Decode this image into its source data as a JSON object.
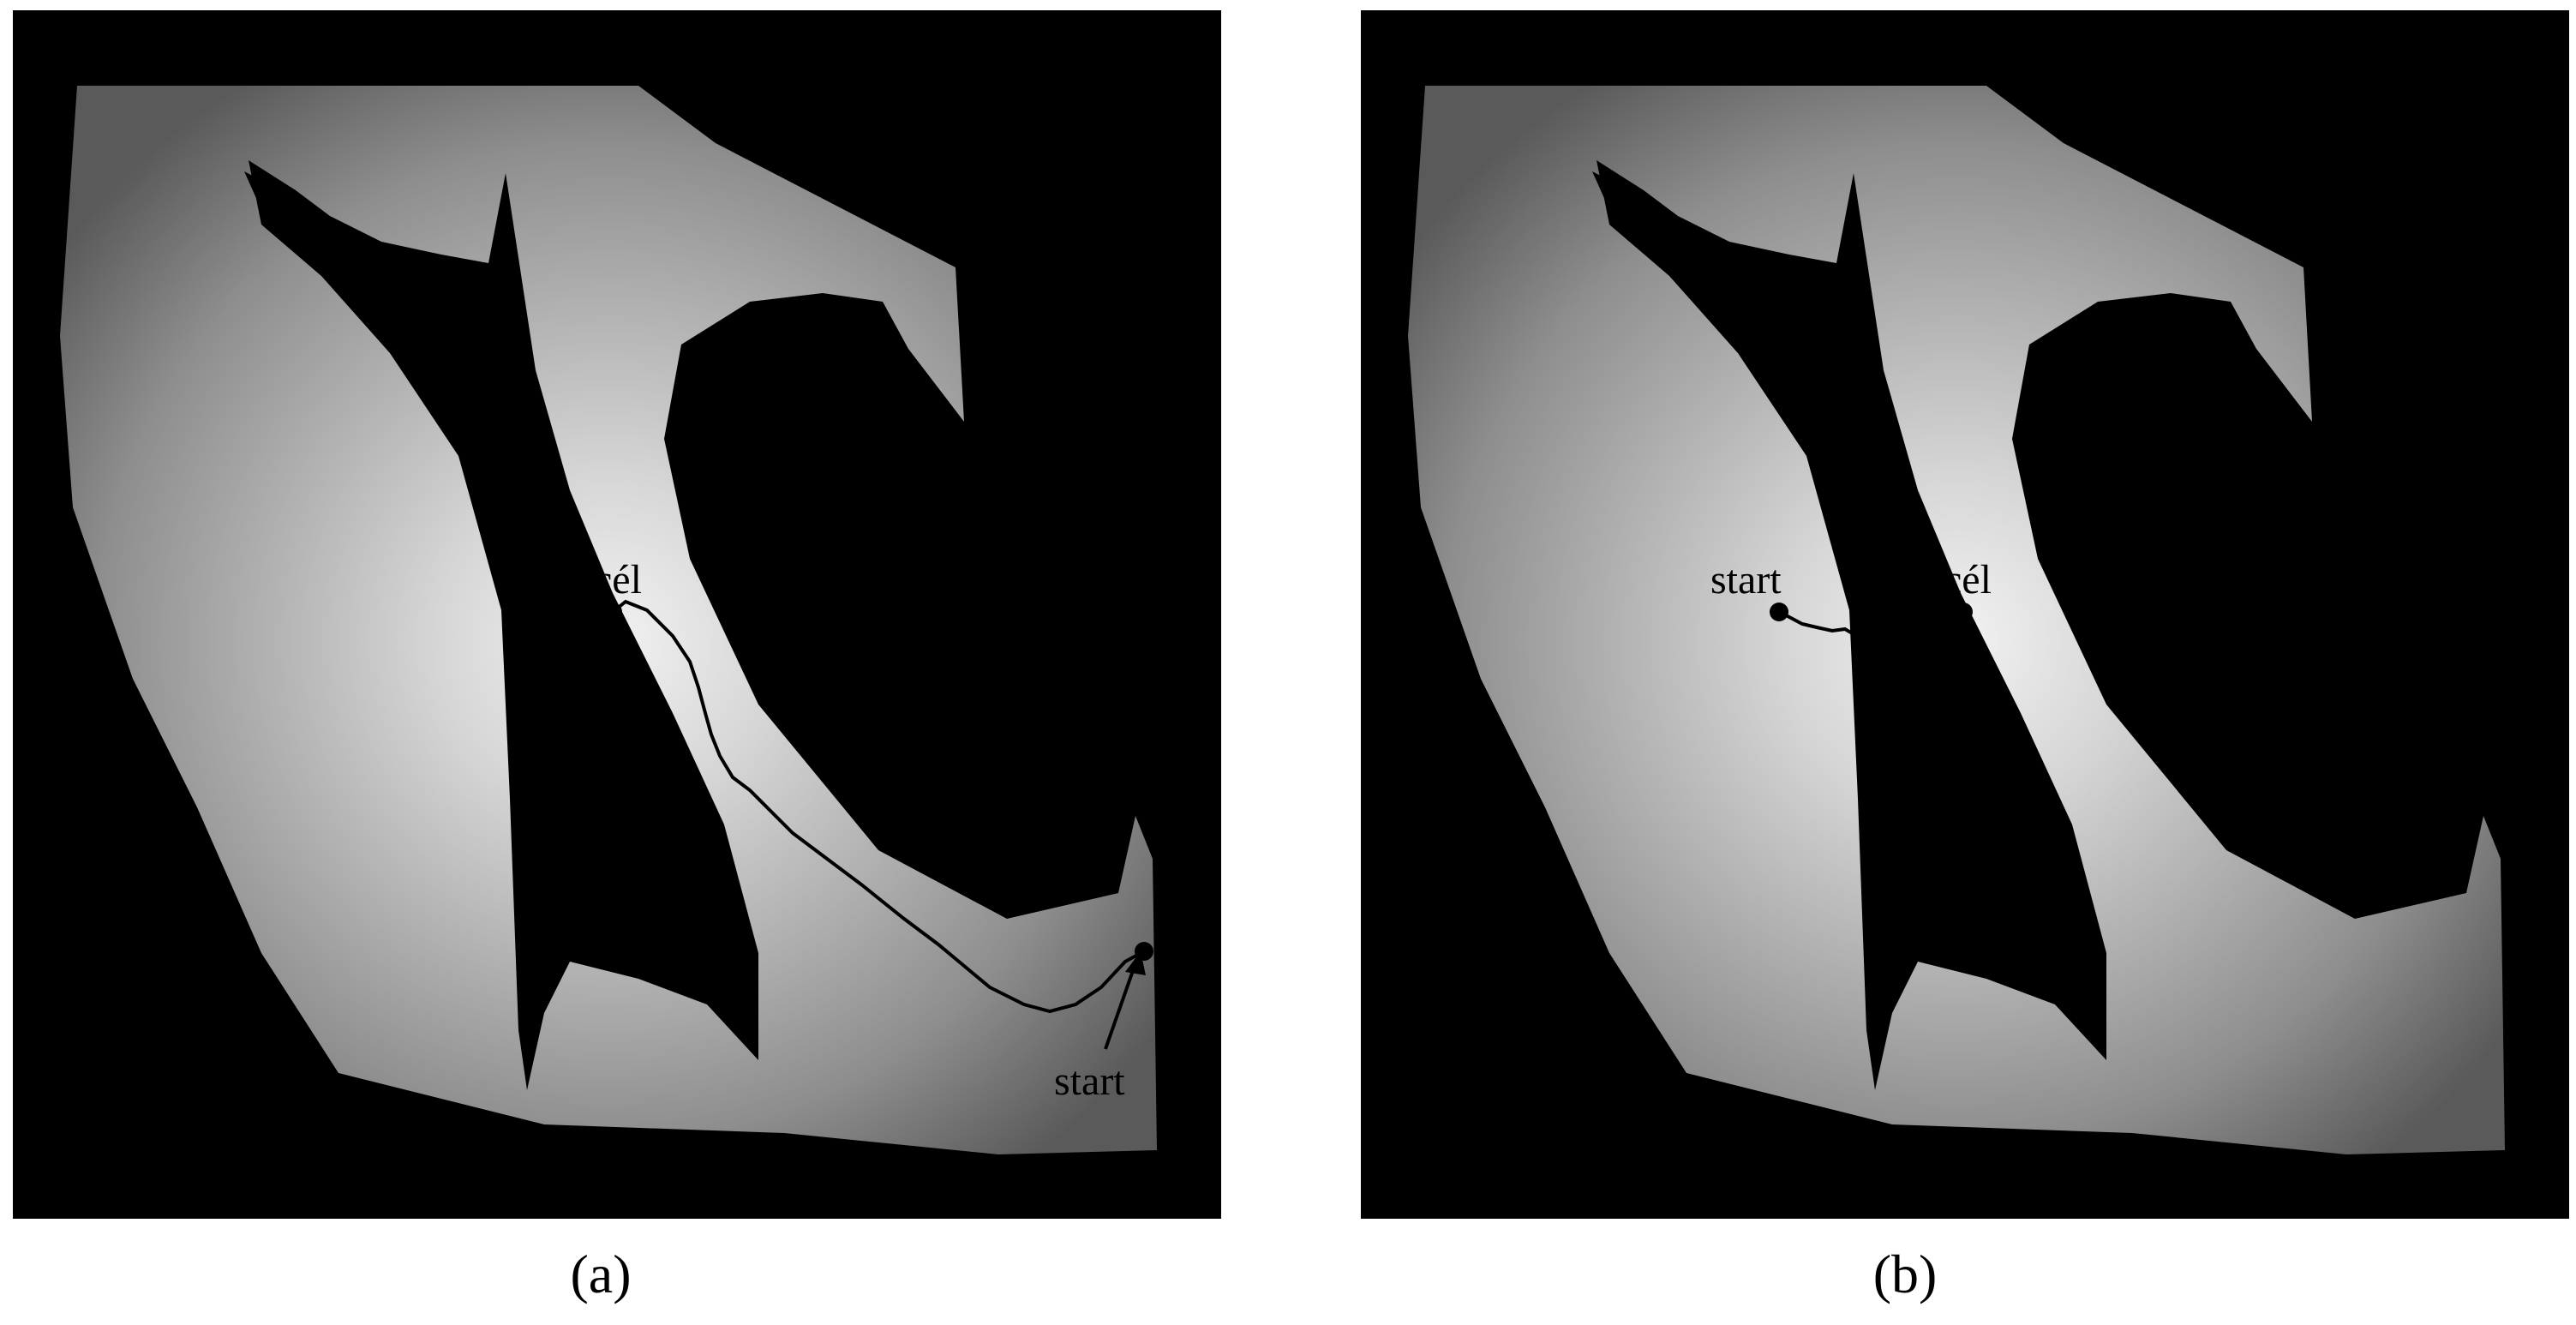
{
  "figure": {
    "panels": [
      {
        "caption": "(a)",
        "labels": {
          "goal": "cél",
          "start": "start"
        }
      },
      {
        "caption": "(b)",
        "labels": {
          "goal": "cél",
          "start": "start"
        }
      }
    ]
  }
}
